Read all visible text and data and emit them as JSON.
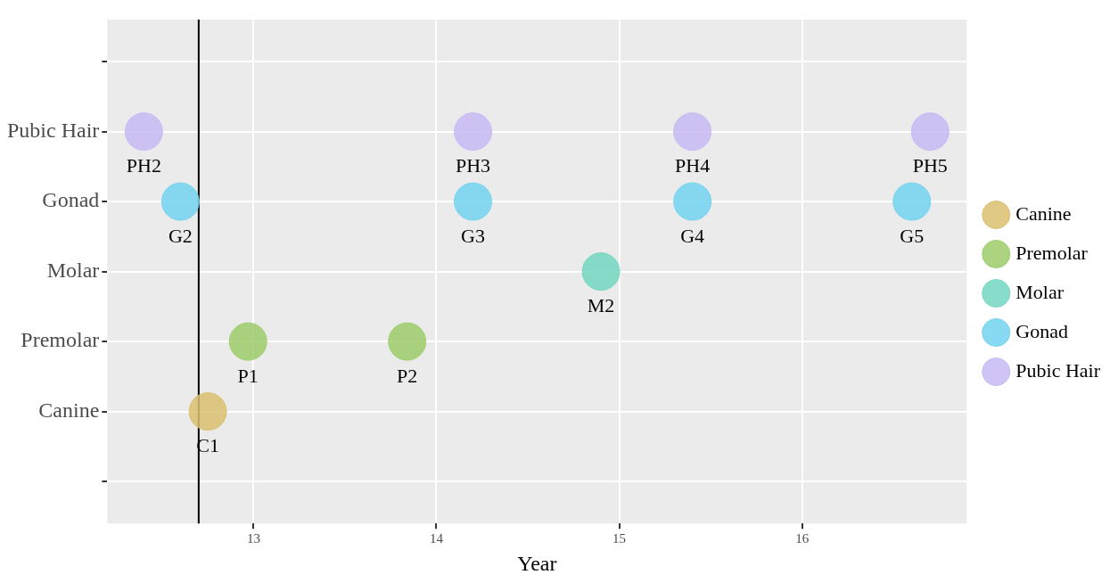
{
  "chart_data": {
    "type": "scatter",
    "orientation": "horizontal",
    "xlabel": "Year",
    "categories": [
      null,
      "Pubic Hair",
      "Gonad",
      "Molar",
      "Premolar",
      "Canine",
      null
    ],
    "xlim": [
      12.2,
      16.9
    ],
    "xticks": [
      13,
      14,
      15,
      16
    ],
    "grid": true,
    "legend": "right",
    "marker": "circle",
    "series": [
      {
        "name": "Canine",
        "color": "#d9bf6e",
        "x": [
          "Canine"
        ],
        "values": [
          12.75
        ]
      },
      {
        "name": "Premolar",
        "color": "#9dcc6a",
        "x": [
          "Premolar",
          "Premolar"
        ],
        "values": [
          12.97,
          13.84
        ]
      },
      {
        "name": "Molar",
        "color": "#72d7bf",
        "x": [
          "Molar"
        ],
        "values": [
          14.9
        ]
      },
      {
        "name": "Gonad",
        "color": "#72d3ee",
        "x": [
          "Gonad",
          "Gonad",
          "Gonad",
          "Gonad"
        ],
        "values": [
          12.6,
          14.2,
          15.4,
          16.6
        ]
      },
      {
        "name": "Pubic Hair",
        "color": "#c8b8f4",
        "x": [
          "Pubic Hair",
          "Pubic Hair",
          "Pubic Hair",
          "Pubic Hair"
        ],
        "values": [
          12.4,
          14.2,
          15.4,
          16.7
        ]
      }
    ],
    "ref_lines": [
      {
        "axis": "x",
        "value": 12.7,
        "color": "#000000"
      }
    ],
    "annotations": [
      {
        "text": "C1",
        "x": 12.75,
        "y": "Canine"
      },
      {
        "text": "P1",
        "x": 12.97,
        "y": "Premolar"
      },
      {
        "text": "P2",
        "x": 13.84,
        "y": "Premolar"
      },
      {
        "text": "M2",
        "x": 14.9,
        "y": "Molar"
      },
      {
        "text": "G2",
        "x": 12.6,
        "y": "Gonad"
      },
      {
        "text": "G3",
        "x": 14.2,
        "y": "Gonad"
      },
      {
        "text": "G4",
        "x": 15.4,
        "y": "Gonad"
      },
      {
        "text": "G5",
        "x": 16.6,
        "y": "Gonad"
      },
      {
        "text": "PH2",
        "x": 12.4,
        "y": "Pubic Hair"
      },
      {
        "text": "PH3",
        "x": 14.2,
        "y": "Pubic Hair"
      },
      {
        "text": "PH4",
        "x": 15.4,
        "y": "Pubic Hair"
      },
      {
        "text": "PH5",
        "x": 16.7,
        "y": "Pubic Hair"
      }
    ]
  }
}
